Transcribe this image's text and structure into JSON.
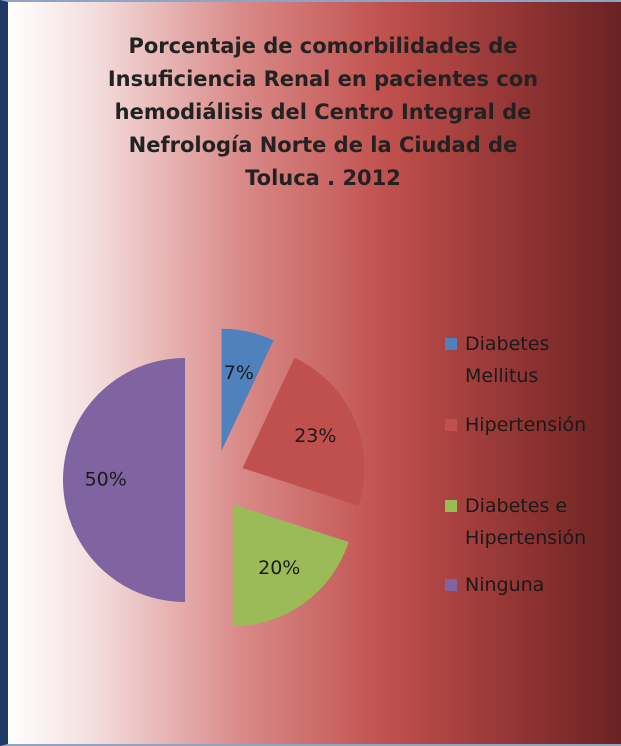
{
  "chart_data": {
    "type": "pie",
    "title": "Porcentaje de comorbilidades de Insuficiencia Renal en pacientes con hemodiálisis del Centro Integral de Nefrología Norte de la Ciudad de Toluca . 2012",
    "categories": [
      "Diabetes Mellitus",
      "Hipertensión",
      "Diabetes e Hipertensión",
      "Ninguna"
    ],
    "values": [
      7,
      23,
      20,
      50
    ],
    "value_labels": [
      "7%",
      "23%",
      "20%",
      "50%"
    ],
    "colors": [
      "#4f81bd",
      "#c0504d",
      "#9bbb59",
      "#8064a2"
    ],
    "legend": "right"
  }
}
